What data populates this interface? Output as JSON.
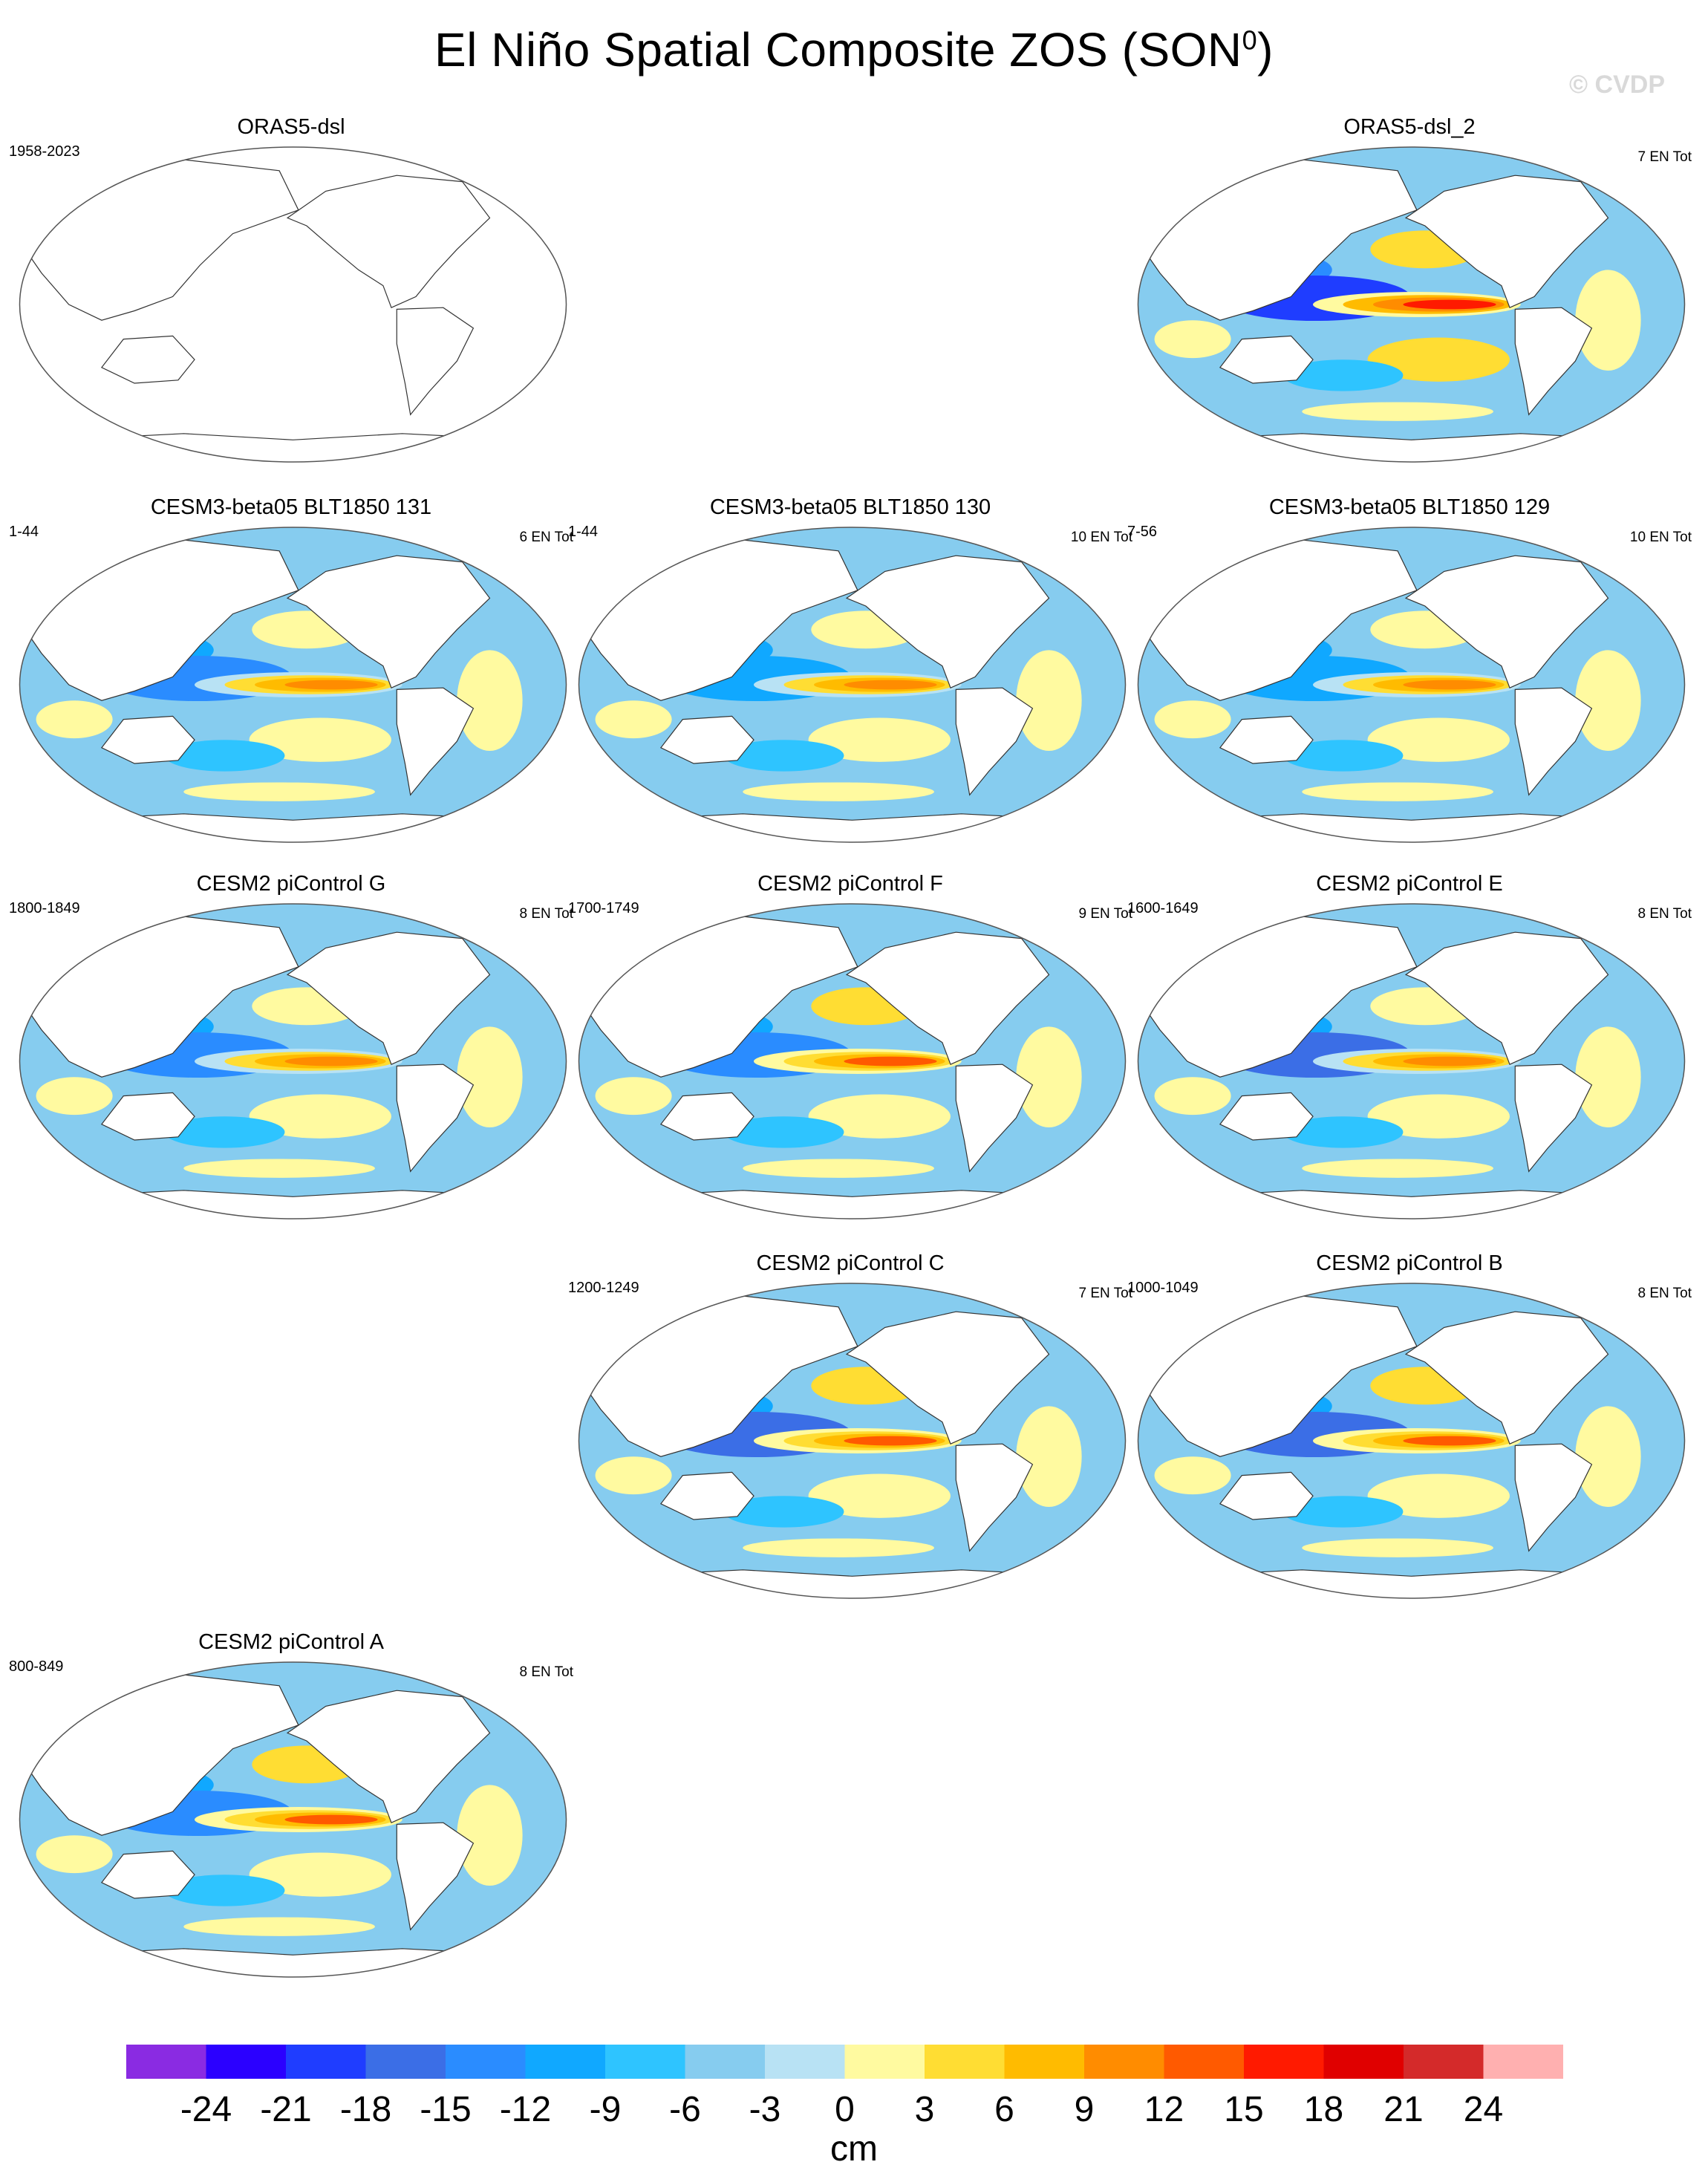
{
  "title": {
    "text": "El Niño Spatial Composite ZOS (SON",
    "sup": "0",
    "close": ")"
  },
  "watermark": "© CVDP",
  "chart_data": {
    "type": "heatmap",
    "title": "El Niño Spatial Composite ZOS (SON0)",
    "projection": "Robinson, Pacific-centered",
    "units": "cm",
    "contour_levels": [
      -24,
      -21,
      -18,
      -15,
      -12,
      -9,
      -6,
      -3,
      0,
      3,
      6,
      9,
      12,
      15,
      18,
      21,
      24
    ],
    "colorbar_colors": [
      "#8a2be2",
      "#2b00ff",
      "#1f3dff",
      "#3b6ee6",
      "#2a8cff",
      "#10a8ff",
      "#2ec4ff",
      "#86ccef",
      "#b8e2f4",
      "#fffaa0",
      "#ffdd33",
      "#ffbb00",
      "#ff8c00",
      "#ff5a00",
      "#ff1a00",
      "#e00000",
      "#d42a2a",
      "#ffb0b0"
    ],
    "panels": [
      {
        "id": "orasdsl",
        "title": "ORAS5-dsl",
        "years": "1958-2023",
        "count": "",
        "empty": true
      },
      {
        "id": "orasdsl2",
        "title": "ORAS5-dsl_2",
        "years": "",
        "count": "7 EN Tot",
        "pattern": {
          "west_min": -18,
          "east_max": 18
        }
      },
      {
        "id": "b131",
        "title": "CESM3-beta05 BLT1850 131",
        "years": "1-44",
        "count": "6 EN Tot",
        "pattern": {
          "west_min": -12,
          "east_max": 12
        }
      },
      {
        "id": "b130",
        "title": "CESM3-beta05 BLT1850 130",
        "years": "1-44",
        "count": "10 EN Tot",
        "pattern": {
          "west_min": -9,
          "east_max": 12
        }
      },
      {
        "id": "b129",
        "title": "CESM3-beta05 BLT1850 129",
        "years": "7-56",
        "count": "10 EN Tot",
        "pattern": {
          "west_min": -9,
          "east_max": 12
        }
      },
      {
        "id": "g",
        "title": "CESM2 piControl G",
        "years": "1800-1849",
        "count": "8 EN Tot",
        "pattern": {
          "west_min": -12,
          "east_max": 12
        }
      },
      {
        "id": "f",
        "title": "CESM2 piControl F",
        "years": "1700-1749",
        "count": "9 EN Tot",
        "pattern": {
          "west_min": -12,
          "east_max": 15
        }
      },
      {
        "id": "e",
        "title": "CESM2 piControl E",
        "years": "1600-1649",
        "count": "8 EN Tot",
        "pattern": {
          "west_min": -15,
          "east_max": 12
        }
      },
      {
        "id": "c",
        "title": "CESM2 piControl C",
        "years": "1200-1249",
        "count": "7 EN Tot",
        "pattern": {
          "west_min": -15,
          "east_max": 15
        }
      },
      {
        "id": "b",
        "title": "CESM2 piControl B",
        "years": "1000-1049",
        "count": "8 EN Tot",
        "pattern": {
          "west_min": -15,
          "east_max": 15
        }
      },
      {
        "id": "a",
        "title": "CESM2 piControl A",
        "years": "800-849",
        "count": "8 EN Tot",
        "pattern": {
          "west_min": -12,
          "east_max": 15
        }
      }
    ]
  }
}
